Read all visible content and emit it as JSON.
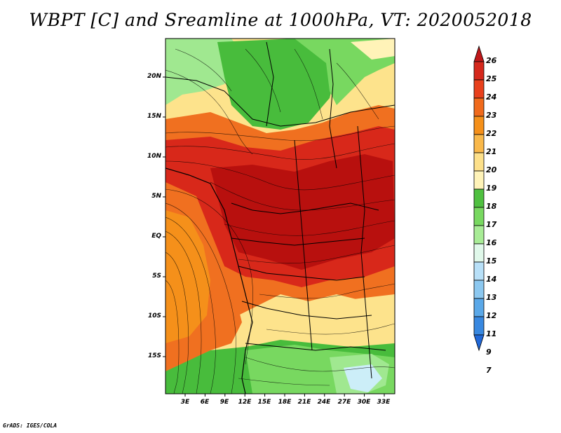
{
  "title": "WBPT [C] and Sreamline at 1000hPa, VT: 2020052018",
  "footer": "GrADS: IGES/COLA",
  "map": {
    "lat_labels": [
      "20N",
      "15N",
      "10N",
      "5N",
      "EQ",
      "5S",
      "10S",
      "15S"
    ],
    "lon_labels": [
      "3E",
      "6E",
      "9E",
      "12E",
      "15E",
      "18E",
      "21E",
      "24E",
      "27E",
      "30E",
      "33E"
    ]
  },
  "colorbar": {
    "labels": [
      "26",
      "25",
      "24",
      "23",
      "22",
      "21",
      "20",
      "19",
      "18",
      "17",
      "16",
      "15",
      "14",
      "13",
      "12",
      "11",
      "9",
      "7"
    ],
    "colors": [
      "#c0181a",
      "#d5281c",
      "#e8401c",
      "#f06a1c",
      "#f5901a",
      "#f9b84a",
      "#fde08a",
      "#fff3b8",
      "#4fc040",
      "#78d860",
      "#a8ec96",
      "#e0f8ea",
      "#b8e0f8",
      "#8cc8f0",
      "#5aa8e8",
      "#3888e0",
      "#2068d8"
    ]
  },
  "colors": {
    "dark_red": "#b8100e",
    "red": "#d8281a",
    "orange": "#f07020",
    "yellow": "#fde38c",
    "light_yellow": "#fff3b8",
    "green": "#48bc3c",
    "light_green": "#a0e890",
    "light_blue": "#cceef8"
  }
}
